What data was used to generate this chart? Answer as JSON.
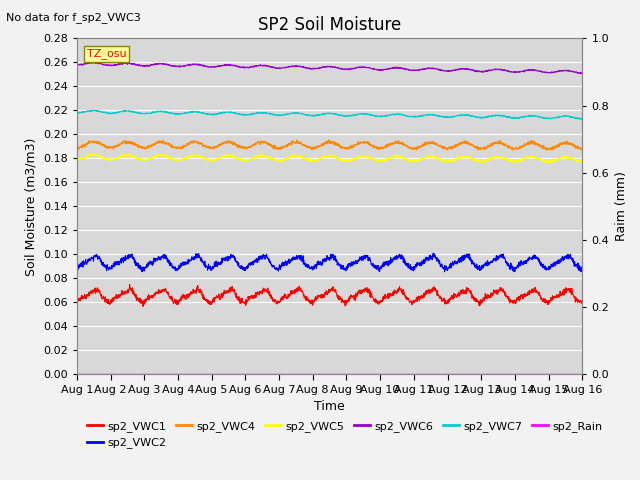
{
  "title": "SP2 Soil Moisture",
  "no_data_text": "No data for f_sp2_VWC3",
  "tz_label": "TZ_osu",
  "xlabel": "Time",
  "ylabel_left": "Soil Moisture (m3/m3)",
  "ylabel_right": "Raim (mm)",
  "ylim_left": [
    0.0,
    0.28
  ],
  "ylim_right": [
    0.0,
    1.0
  ],
  "xlim": [
    0,
    15
  ],
  "x_ticks": [
    0,
    1,
    2,
    3,
    4,
    5,
    6,
    7,
    8,
    9,
    10,
    11,
    12,
    13,
    14,
    15
  ],
  "x_tick_labels": [
    "Aug 1",
    "Aug 2",
    "Aug 3",
    "Aug 4",
    "Aug 5",
    "Aug 6",
    "Aug 7",
    "Aug 8",
    "Aug 9",
    "Aug 10",
    "Aug 11",
    "Aug 12",
    "Aug 13",
    "Aug 14",
    "Aug 15",
    "Aug 16"
  ],
  "y_ticks_left": [
    0.0,
    0.02,
    0.04,
    0.06,
    0.08,
    0.1,
    0.12,
    0.14,
    0.16,
    0.18,
    0.2,
    0.22,
    0.24,
    0.26,
    0.28
  ],
  "y_ticks_right": [
    0.0,
    0.2,
    0.4,
    0.6,
    0.8,
    1.0
  ],
  "series": {
    "sp2_VWC1": {
      "color": "#ff0000",
      "base": 0.06,
      "amp": 0.009,
      "freq": 1.0,
      "trend": 0.0
    },
    "sp2_VWC2": {
      "color": "#0000ff",
      "base": 0.088,
      "amp": 0.009,
      "freq": 1.0,
      "trend": 0.0
    },
    "sp2_VWC4": {
      "color": "#ff8800",
      "base": 0.189,
      "amp": 0.005,
      "freq": 1.0,
      "trend": -0.001
    },
    "sp2_VWC5": {
      "color": "#ffff00",
      "base": 0.179,
      "amp": 0.004,
      "freq": 1.0,
      "trend": -0.002
    },
    "sp2_VWC6": {
      "color": "#9900cc",
      "base": 0.258,
      "amp": 0.002,
      "freq": 1.0,
      "trend": -0.007
    },
    "sp2_VWC7": {
      "color": "#00cccc",
      "base": 0.218,
      "amp": 0.002,
      "freq": 1.0,
      "trend": -0.005
    },
    "sp2_Rain": {
      "color": "#ff00ff",
      "base": 0.0,
      "amp": 0.0,
      "freq": 0.0,
      "trend": 0.0
    }
  },
  "legend_order": [
    "sp2_VWC1",
    "sp2_VWC2",
    "sp2_VWC4",
    "sp2_VWC5",
    "sp2_VWC6",
    "sp2_VWC7",
    "sp2_Rain"
  ],
  "background_color": "#d8d8d8",
  "fig_facecolor": "#f2f2f2",
  "grid_color": "#ffffff",
  "title_fontsize": 12,
  "label_fontsize": 9,
  "tick_fontsize": 8
}
